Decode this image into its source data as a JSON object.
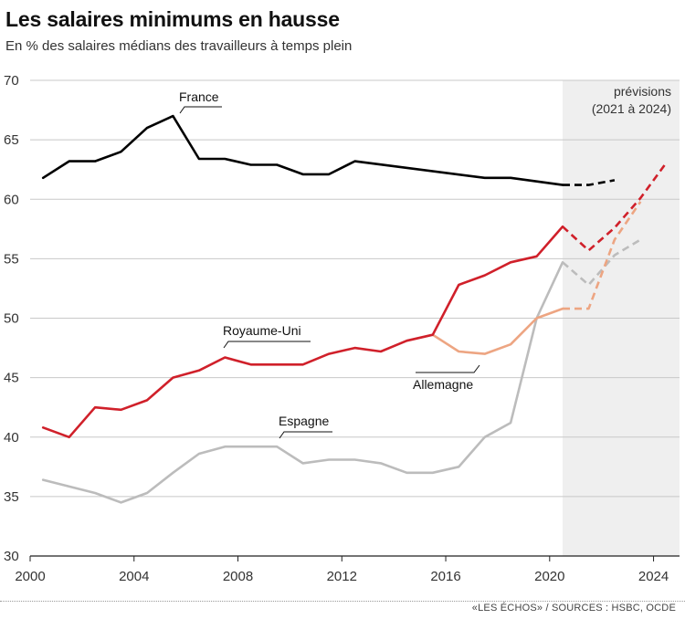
{
  "header": {
    "title": "Les salaires minimums en hausse",
    "subtitle": "En % des salaires médians des travailleurs à temps plein"
  },
  "footer": {
    "source": "«LES ÉCHOS» / SOURCES : HSBC, OCDE"
  },
  "forecast_label": [
    "prévisions",
    "(2021 à 2024)"
  ],
  "chart_data": {
    "type": "line",
    "title": "Les salaires minimums en hausse",
    "subtitle": "En % des salaires médians des travailleurs à temps plein",
    "xlim": [
      2000,
      2025
    ],
    "ylim": [
      30,
      70
    ],
    "x_ticks": [
      2000,
      2004,
      2008,
      2012,
      2016,
      2020,
      2024
    ],
    "y_ticks": [
      30,
      35,
      40,
      45,
      50,
      55,
      60,
      65,
      70
    ],
    "grid": "horizontal",
    "forecast_start": 2020.5,
    "series": [
      {
        "name": "France",
        "color": "#000000",
        "actual": [
          [
            2000.5,
            61.8
          ],
          [
            2001.5,
            63.2
          ],
          [
            2002.5,
            63.2
          ],
          [
            2003.5,
            64.0
          ],
          [
            2004.5,
            66.0
          ],
          [
            2005.5,
            67.0
          ],
          [
            2006.5,
            63.4
          ],
          [
            2007.5,
            63.4
          ],
          [
            2008.5,
            62.9
          ],
          [
            2009.5,
            62.9
          ],
          [
            2010.5,
            62.1
          ],
          [
            2011.5,
            62.1
          ],
          [
            2012.5,
            63.2
          ],
          [
            2017.5,
            61.8
          ],
          [
            2018.5,
            61.8
          ],
          [
            2020.5,
            61.2
          ]
        ],
        "forecast": [
          [
            2020.5,
            61.2
          ],
          [
            2021.5,
            61.2
          ],
          [
            2022.5,
            61.6
          ]
        ]
      },
      {
        "name": "Royaume-Uni",
        "color": "#d0202a",
        "actual": [
          [
            2000.5,
            40.8
          ],
          [
            2001.5,
            40.0
          ],
          [
            2002.5,
            42.5
          ],
          [
            2003.5,
            42.3
          ],
          [
            2004.5,
            43.1
          ],
          [
            2005.5,
            45.0
          ],
          [
            2006.5,
            45.6
          ],
          [
            2007.5,
            46.7
          ],
          [
            2008.5,
            46.1
          ],
          [
            2009.5,
            46.1
          ],
          [
            2010.5,
            46.1
          ],
          [
            2011.5,
            47.0
          ],
          [
            2012.5,
            47.5
          ],
          [
            2013.5,
            47.2
          ],
          [
            2014.5,
            48.1
          ],
          [
            2015.5,
            48.6
          ],
          [
            2016.5,
            52.8
          ],
          [
            2017.5,
            53.6
          ],
          [
            2018.5,
            54.7
          ],
          [
            2019.5,
            55.2
          ],
          [
            2020.5,
            57.7
          ]
        ],
        "forecast": [
          [
            2020.5,
            57.7
          ],
          [
            2021.5,
            55.7
          ],
          [
            2022.5,
            57.6
          ],
          [
            2023.5,
            60.1
          ],
          [
            2024.5,
            63.1
          ]
        ]
      },
      {
        "name": "Allemagne",
        "color": "#eda582",
        "actual": [
          [
            2015.5,
            48.6
          ],
          [
            2016.5,
            47.2
          ],
          [
            2017.5,
            47.0
          ],
          [
            2018.5,
            47.8
          ],
          [
            2019.5,
            50.0
          ],
          [
            2020.5,
            50.8
          ]
        ],
        "forecast": [
          [
            2020.5,
            50.8
          ],
          [
            2021.5,
            50.8
          ],
          [
            2022.5,
            56.6
          ],
          [
            2023.5,
            59.8
          ]
        ]
      },
      {
        "name": "Espagne",
        "color": "#bcbcbc",
        "actual": [
          [
            2000.5,
            36.4
          ],
          [
            2002.5,
            35.3
          ],
          [
            2003.5,
            34.5
          ],
          [
            2004.5,
            35.3
          ],
          [
            2005.5,
            37.0
          ],
          [
            2006.5,
            38.6
          ],
          [
            2007.5,
            39.2
          ],
          [
            2008.5,
            39.2
          ],
          [
            2009.5,
            39.2
          ],
          [
            2010.5,
            37.8
          ],
          [
            2011.5,
            38.1
          ],
          [
            2012.5,
            38.1
          ],
          [
            2013.5,
            37.8
          ],
          [
            2014.5,
            37.0
          ],
          [
            2015.5,
            37.0
          ],
          [
            2016.5,
            37.5
          ],
          [
            2017.5,
            40.0
          ],
          [
            2018.5,
            41.2
          ],
          [
            2019.5,
            50.0
          ],
          [
            2020.5,
            54.7
          ]
        ],
        "forecast": [
          [
            2020.5,
            54.7
          ],
          [
            2021.5,
            52.8
          ],
          [
            2022.5,
            55.3
          ],
          [
            2023.5,
            56.6
          ]
        ]
      }
    ]
  }
}
